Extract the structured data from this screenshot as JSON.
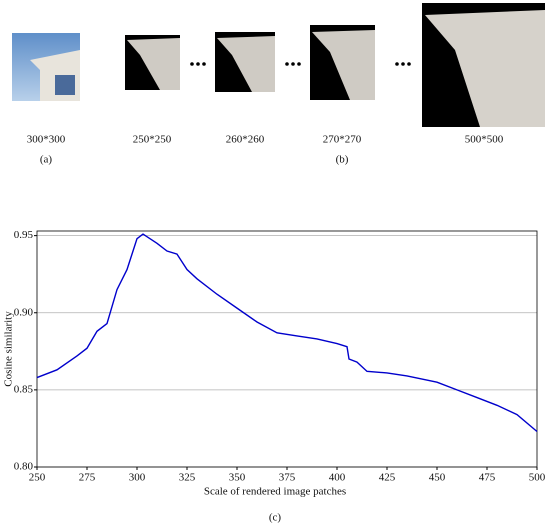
{
  "figure": {
    "panels": [
      {
        "label": "300*300"
      },
      {
        "label": "250*250"
      },
      {
        "label": "260*260"
      },
      {
        "label": "270*270"
      },
      {
        "label": "500*500"
      }
    ],
    "caption_a": "(a)",
    "caption_b": "(b)",
    "caption_c": "(c)"
  },
  "chart_data": {
    "type": "line",
    "x_label": "Scale of rendered image patches",
    "y_label": "Cosine similarity",
    "x": [
      250,
      260,
      270,
      275,
      280,
      285,
      290,
      295,
      300,
      303,
      310,
      315,
      320,
      325,
      330,
      340,
      350,
      360,
      370,
      380,
      390,
      400,
      405,
      406,
      410,
      415,
      425,
      435,
      450,
      460,
      470,
      480,
      490,
      500
    ],
    "values": [
      0.858,
      0.863,
      0.872,
      0.877,
      0.888,
      0.893,
      0.915,
      0.928,
      0.948,
      0.951,
      0.945,
      0.94,
      0.938,
      0.928,
      0.922,
      0.912,
      0.903,
      0.894,
      0.887,
      0.885,
      0.883,
      0.88,
      0.878,
      0.87,
      0.868,
      0.862,
      0.861,
      0.859,
      0.855,
      0.85,
      0.845,
      0.84,
      0.834,
      0.823
    ],
    "color": "#0000cc",
    "xlim": [
      250,
      500
    ],
    "ylim": [
      0.8,
      0.953
    ],
    "xticks": [
      250,
      275,
      300,
      325,
      350,
      375,
      400,
      425,
      450,
      475,
      500
    ],
    "yticks": [
      {
        "value": 0.8,
        "label": "0.80"
      },
      0.85,
      {
        "value": 0.9,
        "label": "0.90"
      },
      0.95
    ],
    "grid": true
  }
}
